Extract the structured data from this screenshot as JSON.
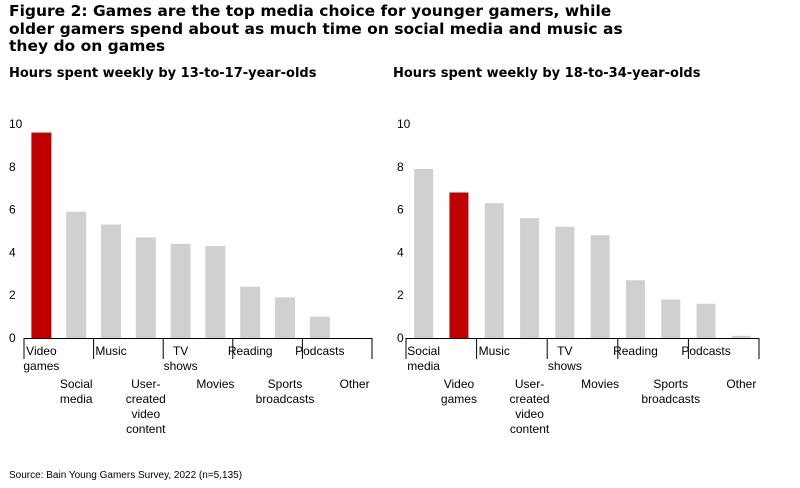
{
  "title": "Figure 2: Games are the top media choice for younger gamers, while older gamers spend about as much time on social media and music as they do on games",
  "source": "Source: Bain Young Gamers Survey, 2022 (n=5,135)",
  "colors": {
    "highlight": "#c00000",
    "bar": "#d0d0d0",
    "axis": "#000000"
  },
  "chart_data": [
    {
      "type": "bar",
      "title": "Hours spent weekly by 13-to-17-year-olds",
      "categories": [
        "Video games",
        "Social media",
        "Music",
        "User-created video content",
        "TV shows",
        "Movies",
        "Reading",
        "Sports broadcasts",
        "Podcasts",
        "Other"
      ],
      "category_lines": [
        [
          "Video",
          "games"
        ],
        [
          "Social",
          "media"
        ],
        [
          "Music"
        ],
        [
          "User-",
          "created",
          "video",
          "content"
        ],
        [
          "TV",
          "shows"
        ],
        [
          "Movies"
        ],
        [
          "Reading"
        ],
        [
          "Sports",
          "broadcasts"
        ],
        [
          "Podcasts"
        ],
        [
          "Other"
        ]
      ],
      "values": [
        9.6,
        5.9,
        5.3,
        4.7,
        4.4,
        4.3,
        2.4,
        1.9,
        1.0,
        0.0
      ],
      "highlight": "Video games",
      "yticks": [
        0,
        2,
        4,
        6,
        8,
        10
      ],
      "ylim": [
        0,
        10
      ],
      "legend": "none",
      "grid": false
    },
    {
      "type": "bar",
      "title": "Hours spent weekly by 18-to-34-year-olds",
      "categories": [
        "Social media",
        "Video games",
        "Music",
        "User-created video content",
        "TV shows",
        "Movies",
        "Reading",
        "Sports broadcasts",
        "Podcasts",
        "Other"
      ],
      "category_lines": [
        [
          "Social",
          "media"
        ],
        [
          "Video",
          "games"
        ],
        [
          "Music"
        ],
        [
          "User-",
          "created",
          "video",
          "content"
        ],
        [
          "TV",
          "shows"
        ],
        [
          "Movies"
        ],
        [
          "Reading"
        ],
        [
          "Sports",
          "broadcasts"
        ],
        [
          "Podcasts"
        ],
        [
          "Other"
        ]
      ],
      "values": [
        7.9,
        6.8,
        6.3,
        5.6,
        5.2,
        4.8,
        2.7,
        1.8,
        1.6,
        0.1
      ],
      "highlight": "Video games",
      "yticks": [
        0,
        2,
        4,
        6,
        8,
        10
      ],
      "ylim": [
        0,
        10
      ],
      "legend": "none",
      "grid": false
    }
  ]
}
